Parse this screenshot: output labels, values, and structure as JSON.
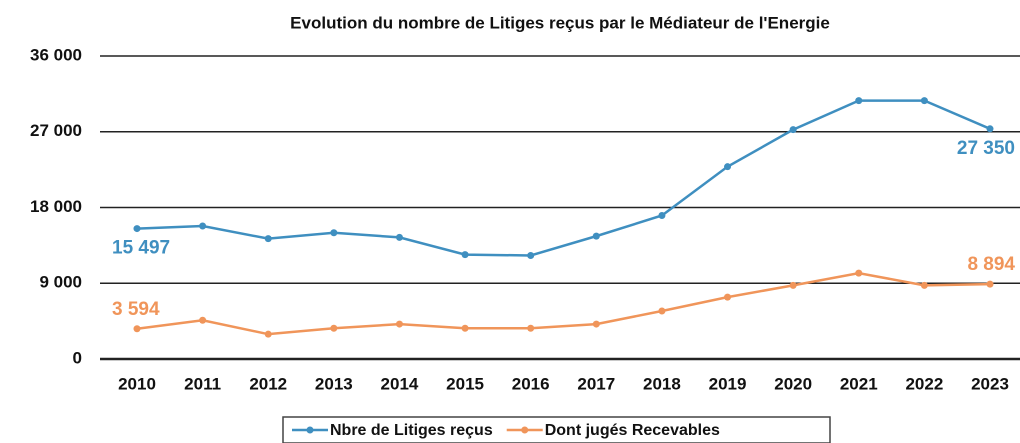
{
  "chart_data": {
    "type": "line",
    "title": "Evolution du nombre de Litiges reçus par le Médiateur de l'Energie",
    "categories": [
      "2010",
      "2011",
      "2012",
      "2013",
      "2014",
      "2015",
      "2016",
      "2017",
      "2018",
      "2019",
      "2020",
      "2021",
      "2022",
      "2023"
    ],
    "series": [
      {
        "name": "Nbre de Litiges reçus",
        "color": "#3f8fc0",
        "values": [
          15497,
          15800,
          14300,
          15000,
          14450,
          12400,
          12300,
          14600,
          17050,
          22850,
          27250,
          30700,
          30700,
          27350
        ],
        "value_labels": [
          "15 497",
          null,
          null,
          null,
          null,
          null,
          null,
          null,
          null,
          null,
          null,
          null,
          null,
          "27 350"
        ]
      },
      {
        "name": "Dont jugés Recevables",
        "color": "#f0955a",
        "values": [
          3594,
          4600,
          2950,
          3650,
          4150,
          3650,
          3650,
          4150,
          5700,
          7350,
          8750,
          10200,
          8750,
          8894
        ],
        "value_labels": [
          "3 594",
          null,
          null,
          null,
          null,
          null,
          null,
          null,
          null,
          null,
          null,
          null,
          null,
          "8 894"
        ]
      }
    ],
    "ylim": [
      0,
      36000
    ],
    "yticks": [
      0,
      {
        "value": 9000,
        "label": "9 000"
      },
      {
        "value": 18000,
        "label": "18 000"
      },
      {
        "value": 27000,
        "label": "27 000"
      },
      {
        "value": 36000,
        "label": "36 000"
      }
    ],
    "grid": true,
    "legend": "bottom"
  }
}
